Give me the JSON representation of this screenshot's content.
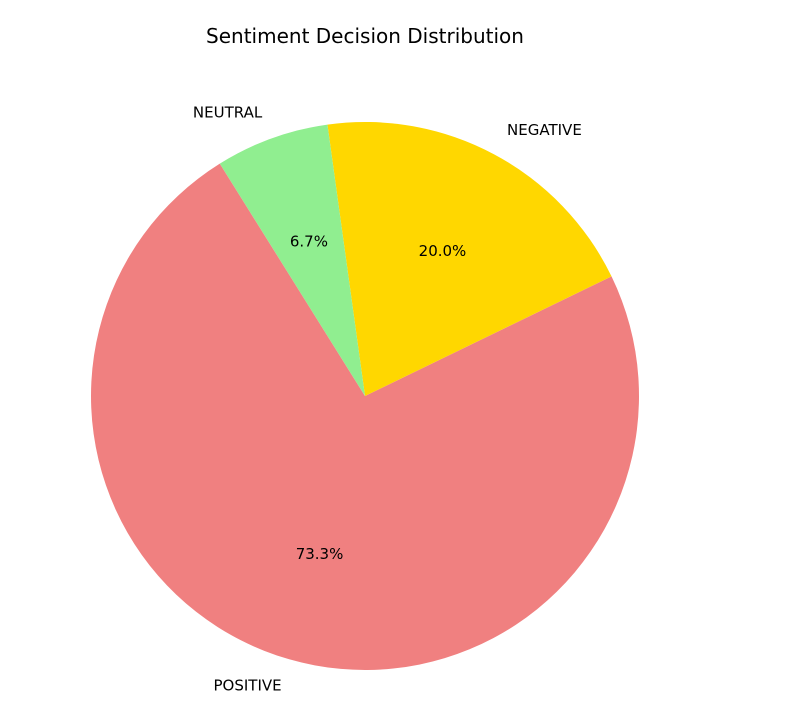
{
  "chart_data": {
    "type": "pie",
    "title": "Sentiment Decision Distribution",
    "slices": [
      {
        "label": "POSITIVE",
        "value": 73.3,
        "pct_label": "73.3%",
        "color": "#f08080"
      },
      {
        "label": "NEGATIVE",
        "value": 20.0,
        "pct_label": "20.0%",
        "color": "#ffd700"
      },
      {
        "label": "NEUTRAL",
        "value": 6.7,
        "pct_label": "6.7%",
        "color": "#90ee90"
      }
    ],
    "start_angle_deg": -122,
    "direction": "counterclockwise"
  }
}
